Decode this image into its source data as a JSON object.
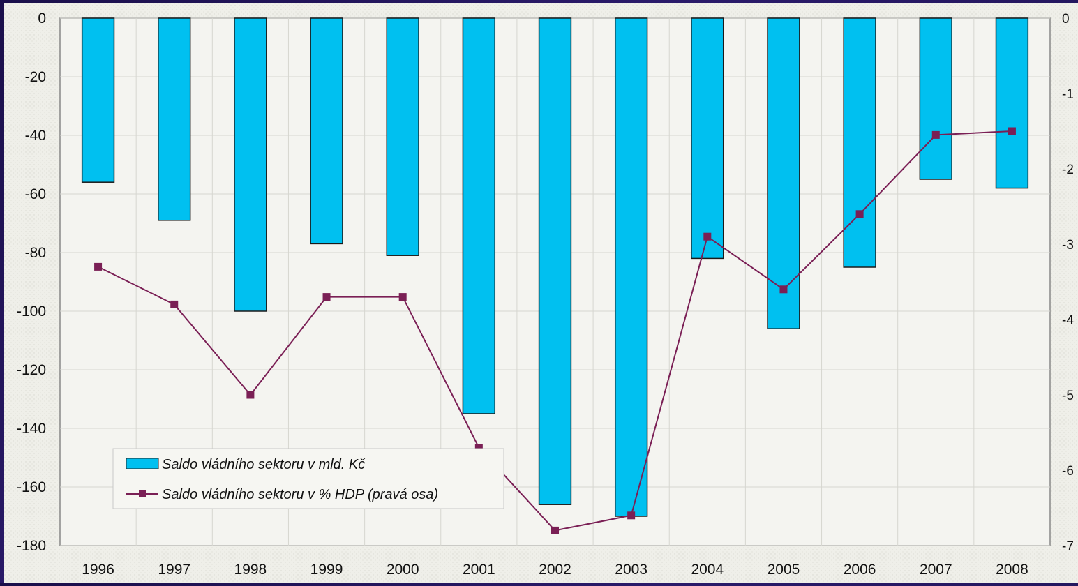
{
  "chart_data": {
    "type": "bar",
    "categories": [
      "1996",
      "1997",
      "1998",
      "1999",
      "2000",
      "2001",
      "2002",
      "2003",
      "2004",
      "2005",
      "2006",
      "2007",
      "2008"
    ],
    "series": [
      {
        "name": "Saldo vládního sektoru v mld. Kč",
        "type": "bar",
        "axis": "left",
        "values": [
          -56,
          -69,
          -100,
          -77,
          -81,
          -135,
          -166,
          -170,
          -82,
          -106,
          -85,
          -55,
          -58
        ]
      },
      {
        "name": "Saldo vládního sektoru v % HDP (pravá osa)",
        "type": "line",
        "axis": "right",
        "values": [
          -3.3,
          -3.8,
          -5.0,
          -3.7,
          -3.7,
          -5.7,
          -6.8,
          -6.6,
          -2.9,
          -3.6,
          -2.6,
          -1.55,
          -1.5
        ]
      }
    ],
    "y_left": {
      "ylim": [
        -180,
        0
      ],
      "ticks": [
        "0",
        "-20",
        "-40",
        "-60",
        "-80",
        "-100",
        "-120",
        "-140",
        "-160",
        "-180"
      ]
    },
    "y_right": {
      "ylim": [
        -7,
        0
      ],
      "ticks": [
        "0",
        "-1",
        "-2",
        "-3",
        "-4",
        "-5",
        "-6",
        "-7"
      ]
    },
    "grid": true,
    "legend_position": "bottom-left",
    "colors": {
      "bar": "#00c0f0",
      "line": "#7a1f55",
      "plot_background": "#f2f2ee"
    }
  }
}
